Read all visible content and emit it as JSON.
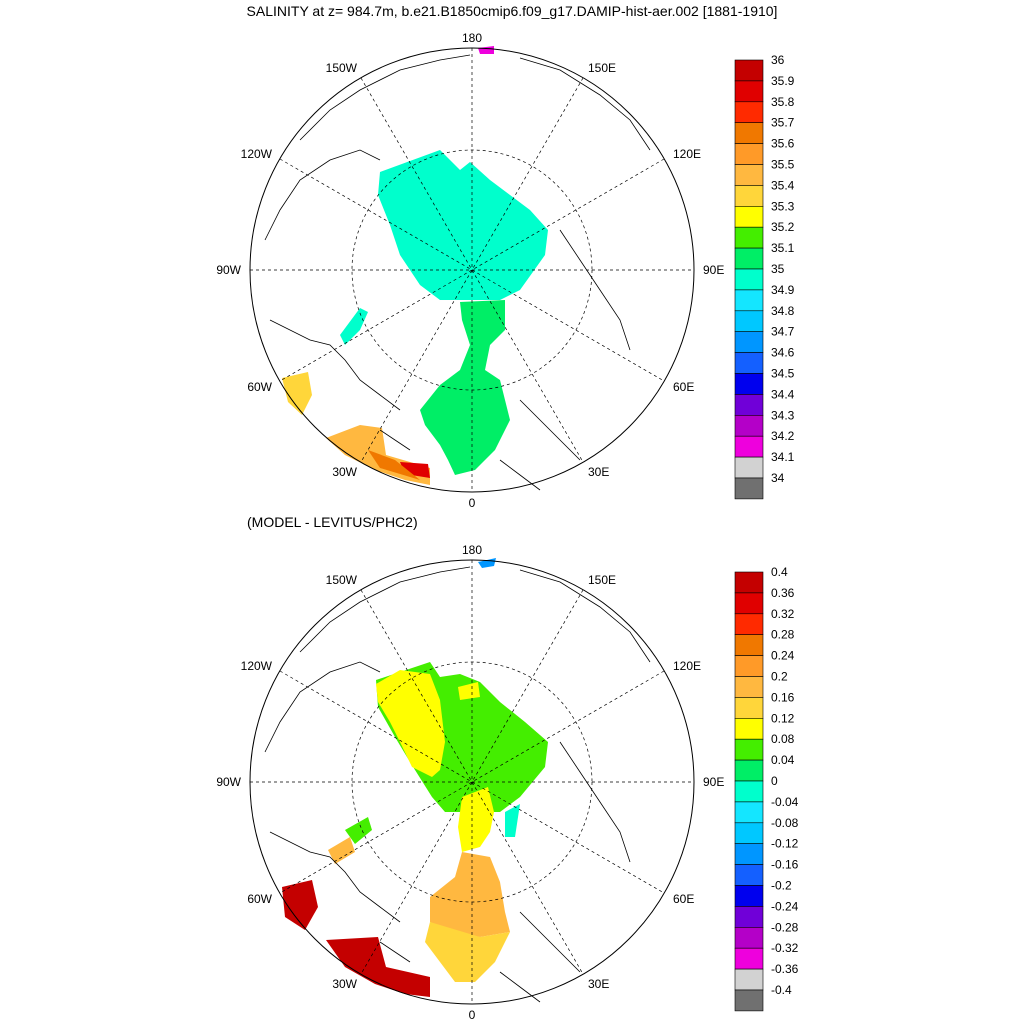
{
  "title": "SALINITY at z= 984.7m, b.e21.B1850cmip6.f09_g17.DAMIP-hist-aer.002 [1881-1910]",
  "subtitle": "(MODEL - LEVITUS/PHC2)",
  "longitude_labels": {
    "top": "180",
    "bottom": "0",
    "left": "90W",
    "right": "90E",
    "upper_left_150": "150W",
    "upper_right_150": "150E",
    "upper_left_120": "120W",
    "upper_right_120": "120E",
    "lower_left_60": "60W",
    "lower_right_60": "60E",
    "lower_left_30": "30W",
    "lower_right_30": "30E"
  },
  "panels": [
    {
      "id": "salinity",
      "colorbar": {
        "labels": [
          "36",
          "35.9",
          "35.8",
          "35.7",
          "35.6",
          "35.5",
          "35.4",
          "35.3",
          "35.2",
          "35.1",
          "35",
          "34.9",
          "34.8",
          "34.7",
          "34.6",
          "34.5",
          "34.4",
          "34.3",
          "34.2",
          "34.1",
          "34"
        ],
        "colors": [
          "#c40000",
          "#e00000",
          "#ff2a00",
          "#f07800",
          "#ff9a28",
          "#ffb840",
          "#ffd63a",
          "#ffff00",
          "#44ee00",
          "#00ee66",
          "#00ffcc",
          "#14e6ff",
          "#00c8ff",
          "#0096ff",
          "#1460ff",
          "#0000ee",
          "#7000d8",
          "#b400c8",
          "#ee00dd",
          "#d2d2d2",
          "#707070"
        ]
      }
    },
    {
      "id": "difference",
      "colorbar": {
        "labels": [
          "0.4",
          "0.36",
          "0.32",
          "0.28",
          "0.24",
          "0.2",
          "0.16",
          "0.12",
          "0.08",
          "0.04",
          "0",
          "-0.04",
          "-0.08",
          "-0.12",
          "-0.16",
          "-0.2",
          "-0.24",
          "-0.28",
          "-0.32",
          "-0.36",
          "-0.4"
        ],
        "colors": [
          "#c40000",
          "#e00000",
          "#ff2a00",
          "#f07800",
          "#ff9a28",
          "#ffb840",
          "#ffd63a",
          "#ffff00",
          "#44ee00",
          "#00ee66",
          "#00ffcc",
          "#14e6ff",
          "#00c8ff",
          "#0096ff",
          "#1460ff",
          "#0000ee",
          "#7000d8",
          "#b400c8",
          "#ee00dd",
          "#d2d2d2",
          "#707070"
        ]
      }
    }
  ]
}
